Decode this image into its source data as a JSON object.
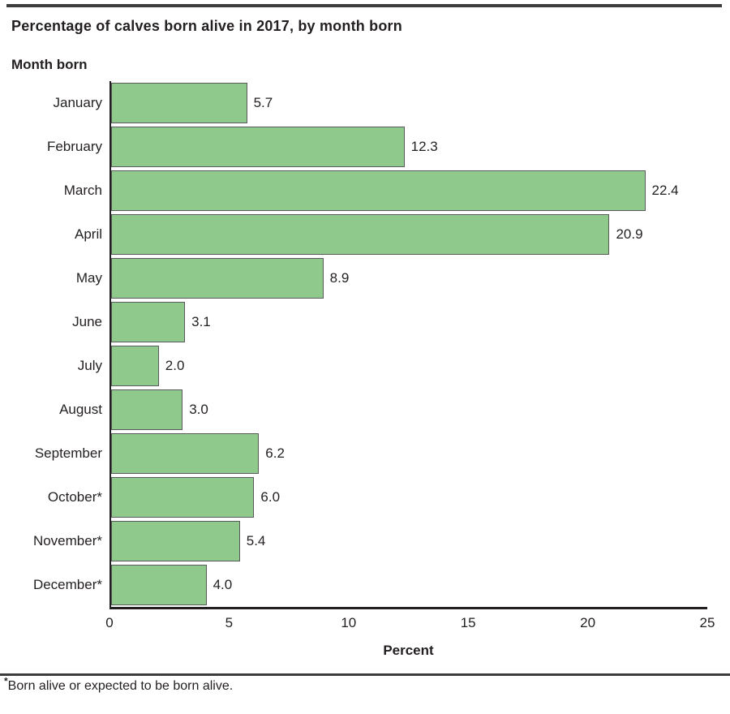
{
  "page": {
    "title": "Percentage of calves born alive in 2017, by month born",
    "footnote_symbol": "*",
    "footnote_text": "Born alive or expected to be born alive."
  },
  "chart_data": {
    "type": "bar",
    "orientation": "horizontal",
    "title": "Percentage of calves born alive in 2017, by month born",
    "ylabel": "Month born",
    "xlabel": "Percent",
    "categories": [
      "January",
      "February",
      "March",
      "April",
      "May",
      "June",
      "July",
      "August",
      "September",
      "October*",
      "November*",
      "December*"
    ],
    "values": [
      5.7,
      12.3,
      22.4,
      20.9,
      8.9,
      3.1,
      2.0,
      3.0,
      6.2,
      6.0,
      5.4,
      4.0
    ],
    "value_labels": [
      "5.7",
      "12.3",
      "22.4",
      "20.9",
      "8.9",
      "3.1",
      "2.0",
      "3.0",
      "6.2",
      "6.0",
      "5.4",
      "4.0"
    ],
    "xlim": [
      0,
      25
    ],
    "x_ticks": [
      0,
      5,
      10,
      15,
      20,
      25
    ],
    "grid": false,
    "legend": "none",
    "bar_color": "#90c98c",
    "bar_border_color": "#58595b",
    "axis_color": "#231f20",
    "text_color": "#231f20",
    "rule_color": "#3c3c3e"
  }
}
